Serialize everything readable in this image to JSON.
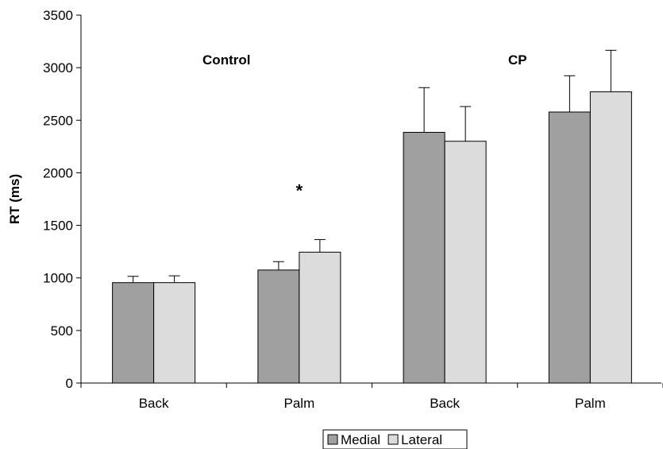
{
  "chart_data": {
    "type": "bar",
    "ylabel": "RT (ms)",
    "xlabel": "",
    "ylim": [
      0,
      3500
    ],
    "yticks": [
      0,
      500,
      1000,
      1500,
      2000,
      2500,
      3000,
      3500
    ],
    "categories": [
      "Back",
      "Palm",
      "Back",
      "Palm"
    ],
    "groups": [
      {
        "label": "Control",
        "categories": [
          0,
          1
        ]
      },
      {
        "label": "CP",
        "categories": [
          2,
          3
        ]
      }
    ],
    "series": [
      {
        "name": "Medial",
        "color": "#a0a0a0",
        "values": [
          955,
          1075,
          2385,
          2578
        ],
        "errors": [
          60,
          80,
          425,
          345
        ]
      },
      {
        "name": "Lateral",
        "color": "#dcdcdc",
        "values": [
          955,
          1245,
          2300,
          2770
        ],
        "errors": [
          65,
          120,
          330,
          395
        ]
      }
    ],
    "annotations": [
      {
        "text": "*",
        "category": 1,
        "y": 1850
      }
    ],
    "legend": "bottom",
    "grid": false
  }
}
